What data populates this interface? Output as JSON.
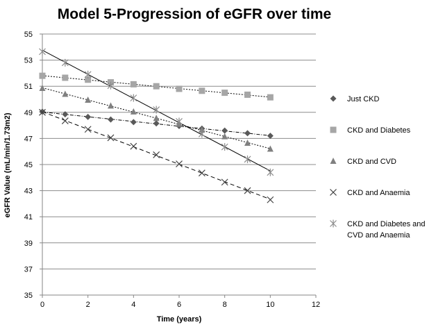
{
  "chart_data": {
    "type": "line",
    "title": "Model 5-Progression of eGFR over time",
    "xlabel": "Time (years)",
    "ylabel": "eGFR Value (mL/min/1.73m2)",
    "xlim": [
      0,
      12
    ],
    "ylim": [
      35,
      55
    ],
    "xticks": [
      0,
      2,
      4,
      6,
      8,
      10,
      12
    ],
    "yticks": [
      35,
      37,
      39,
      41,
      43,
      45,
      47,
      49,
      51,
      53,
      55
    ],
    "grid": "horizontal",
    "legend_position": "right",
    "series": [
      {
        "name": "Just CKD",
        "marker": "diamond",
        "color": "#595959",
        "trendline": "dash-dot",
        "x": [
          0,
          1,
          2,
          3,
          4,
          5,
          6,
          7,
          8,
          9,
          10
        ],
        "y": [
          49.05,
          48.85,
          48.65,
          48.45,
          48.25,
          48.15,
          47.95,
          47.75,
          47.6,
          47.4,
          47.2
        ]
      },
      {
        "name": "CKD and Diabetes",
        "marker": "square",
        "color": "#a6a6a6",
        "trendline": "dotted",
        "x": [
          0,
          1,
          2,
          3,
          4,
          5,
          6,
          7,
          8,
          9,
          10
        ],
        "y": [
          51.8,
          51.65,
          51.5,
          51.3,
          51.15,
          51.0,
          50.8,
          50.65,
          50.5,
          50.35,
          50.15
        ]
      },
      {
        "name": "CKD and CVD",
        "marker": "triangle",
        "color": "#808080",
        "trendline": "dotted",
        "x": [
          0,
          1,
          2,
          3,
          4,
          5,
          6,
          7,
          8,
          9,
          10
        ],
        "y": [
          50.85,
          50.4,
          49.95,
          49.5,
          49.05,
          48.55,
          48.1,
          47.65,
          47.15,
          46.65,
          46.2
        ]
      },
      {
        "name": "CKD and Anaemia",
        "marker": "x",
        "color": "#404040",
        "trendline": "dashed",
        "x": [
          0,
          1,
          2,
          3,
          4,
          5,
          6,
          7,
          8,
          9,
          10
        ],
        "y": [
          49.0,
          48.35,
          47.7,
          47.05,
          46.4,
          45.75,
          45.05,
          44.35,
          43.65,
          43.0,
          42.3
        ]
      },
      {
        "name": "CKD and Diabetes and CVD and Anaemia",
        "marker": "star",
        "color": "#8c8c8c",
        "trendline": "solid",
        "x": [
          0,
          1,
          2,
          3,
          4,
          5,
          6,
          7,
          8,
          9,
          10
        ],
        "y": [
          53.65,
          52.8,
          51.9,
          51.05,
          50.1,
          49.2,
          48.3,
          47.35,
          46.35,
          45.4,
          44.4
        ]
      }
    ],
    "legend_lines": [
      [
        "Just CKD"
      ],
      [
        "CKD and Diabetes"
      ],
      [
        "CKD and CVD"
      ],
      [
        "CKD and Anaemia"
      ],
      [
        "CKD and Diabetes and",
        "CVD and Anaemia"
      ]
    ]
  }
}
